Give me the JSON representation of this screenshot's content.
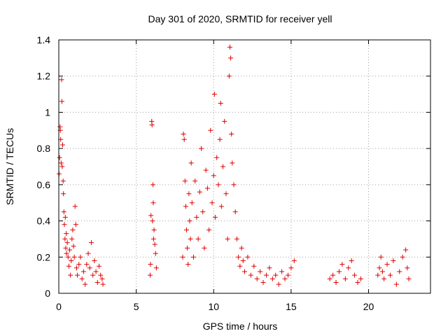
{
  "chart_data": {
    "type": "scatter",
    "title": "Day 301 of 2020, SRMTID for receiver yell",
    "xlabel": "GPS time / hours",
    "ylabel": "SRMTID / TECUs",
    "xlim": [
      0,
      24
    ],
    "ylim": [
      0,
      1.4
    ],
    "xticks": [
      0,
      5,
      10,
      15,
      20
    ],
    "xtick_labels": [
      "0",
      "5",
      "10",
      "15",
      "20"
    ],
    "yticks": [
      0,
      0.2,
      0.4,
      0.6,
      0.8,
      1.0,
      1.2,
      1.4
    ],
    "ytick_labels": [
      "0",
      "0.2",
      "0.4",
      "0.6",
      "0.8",
      "1",
      "1.2",
      "1.4"
    ],
    "grid": true,
    "marker": "plus",
    "color": "#e00000",
    "series": [
      {
        "name": "SRMTID",
        "points": [
          [
            0.02,
            0.66
          ],
          [
            0.05,
            0.75
          ],
          [
            0.08,
            0.92
          ],
          [
            0.1,
            0.9
          ],
          [
            0.12,
            0.85
          ],
          [
            0.15,
            0.72
          ],
          [
            0.18,
            1.18
          ],
          [
            0.2,
            1.06
          ],
          [
            0.22,
            0.7
          ],
          [
            0.25,
            0.82
          ],
          [
            0.28,
            0.62
          ],
          [
            0.3,
            0.55
          ],
          [
            0.33,
            0.45
          ],
          [
            0.36,
            0.38
          ],
          [
            0.4,
            0.3
          ],
          [
            0.42,
            0.42
          ],
          [
            0.45,
            0.25
          ],
          [
            0.48,
            0.33
          ],
          [
            0.5,
            0.22
          ],
          [
            0.55,
            0.28
          ],
          [
            0.6,
            0.2
          ],
          [
            0.65,
            0.15
          ],
          [
            0.7,
            0.24
          ],
          [
            0.75,
            0.1
          ],
          [
            0.8,
            0.18
          ],
          [
            0.85,
            0.3
          ],
          [
            0.9,
            0.35
          ],
          [
            0.95,
            0.26
          ],
          [
            1.0,
            0.2
          ],
          [
            1.05,
            0.48
          ],
          [
            1.1,
            0.38
          ],
          [
            1.15,
            0.14
          ],
          [
            1.2,
            0.1
          ],
          [
            1.3,
            0.16
          ],
          [
            1.4,
            0.2
          ],
          [
            1.5,
            0.08
          ],
          [
            1.6,
            0.12
          ],
          [
            1.7,
            0.05
          ],
          [
            1.8,
            0.16
          ],
          [
            1.9,
            0.22
          ],
          [
            2.0,
            0.14
          ],
          [
            2.1,
            0.28
          ],
          [
            2.2,
            0.1
          ],
          [
            2.3,
            0.18
          ],
          [
            2.4,
            0.12
          ],
          [
            2.5,
            0.06
          ],
          [
            2.6,
            0.15
          ],
          [
            2.7,
            0.1
          ],
          [
            2.8,
            0.08
          ],
          [
            2.85,
            0.05
          ],
          [
            6.0,
            0.95
          ],
          [
            6.02,
            0.93
          ],
          [
            5.95,
            0.43
          ],
          [
            6.05,
            0.4
          ],
          [
            6.1,
            0.5
          ],
          [
            6.15,
            0.35
          ],
          [
            5.9,
            0.1
          ],
          [
            5.92,
            0.16
          ],
          [
            6.2,
            0.27
          ],
          [
            6.25,
            0.22
          ],
          [
            6.3,
            0.14
          ],
          [
            6.08,
            0.6
          ],
          [
            6.12,
            0.3
          ],
          [
            8.0,
            0.2
          ],
          [
            8.05,
            0.88
          ],
          [
            8.1,
            0.85
          ],
          [
            8.15,
            0.62
          ],
          [
            8.2,
            0.48
          ],
          [
            8.25,
            0.35
          ],
          [
            8.3,
            0.25
          ],
          [
            8.35,
            0.16
          ],
          [
            8.4,
            0.55
          ],
          [
            8.45,
            0.4
          ],
          [
            8.5,
            0.3
          ],
          [
            8.55,
            0.72
          ],
          [
            8.6,
            0.5
          ],
          [
            8.7,
            0.2
          ],
          [
            8.8,
            0.62
          ],
          [
            8.9,
            0.42
          ],
          [
            9.0,
            0.3
          ],
          [
            9.1,
            0.56
          ],
          [
            9.2,
            0.8
          ],
          [
            9.3,
            0.45
          ],
          [
            9.4,
            0.25
          ],
          [
            9.5,
            0.68
          ],
          [
            9.6,
            0.58
          ],
          [
            9.7,
            0.35
          ],
          [
            9.8,
            0.9
          ],
          [
            9.9,
            0.5
          ],
          [
            10.0,
            0.65
          ],
          [
            10.05,
            1.1
          ],
          [
            10.1,
            0.42
          ],
          [
            10.2,
            0.75
          ],
          [
            10.3,
            0.6
          ],
          [
            10.4,
            0.85
          ],
          [
            10.45,
            1.05
          ],
          [
            10.5,
            0.48
          ],
          [
            10.6,
            0.7
          ],
          [
            10.7,
            0.95
          ],
          [
            10.8,
            0.55
          ],
          [
            10.9,
            0.3
          ],
          [
            11.0,
            1.2
          ],
          [
            11.05,
            1.36
          ],
          [
            11.1,
            1.3
          ],
          [
            11.15,
            0.88
          ],
          [
            11.2,
            0.72
          ],
          [
            11.3,
            0.6
          ],
          [
            11.4,
            0.45
          ],
          [
            11.5,
            0.3
          ],
          [
            11.6,
            0.2
          ],
          [
            11.7,
            0.15
          ],
          [
            11.8,
            0.25
          ],
          [
            11.9,
            0.18
          ],
          [
            12.0,
            0.12
          ],
          [
            12.2,
            0.2
          ],
          [
            12.4,
            0.1
          ],
          [
            12.6,
            0.15
          ],
          [
            12.8,
            0.08
          ],
          [
            13.0,
            0.12
          ],
          [
            13.2,
            0.06
          ],
          [
            13.4,
            0.1
          ],
          [
            13.6,
            0.14
          ],
          [
            13.8,
            0.08
          ],
          [
            14.0,
            0.1
          ],
          [
            14.2,
            0.05
          ],
          [
            14.4,
            0.12
          ],
          [
            14.6,
            0.08
          ],
          [
            14.8,
            0.1
          ],
          [
            15.0,
            0.14
          ],
          [
            15.2,
            0.18
          ],
          [
            17.5,
            0.08
          ],
          [
            17.7,
            0.1
          ],
          [
            17.9,
            0.06
          ],
          [
            18.1,
            0.12
          ],
          [
            18.3,
            0.16
          ],
          [
            18.5,
            0.08
          ],
          [
            18.7,
            0.14
          ],
          [
            18.9,
            0.18
          ],
          [
            19.1,
            0.1
          ],
          [
            19.3,
            0.06
          ],
          [
            19.5,
            0.08
          ],
          [
            20.6,
            0.1
          ],
          [
            20.7,
            0.14
          ],
          [
            20.8,
            0.2
          ],
          [
            20.9,
            0.12
          ],
          [
            21.0,
            0.08
          ],
          [
            21.2,
            0.16
          ],
          [
            21.4,
            0.1
          ],
          [
            21.6,
            0.18
          ],
          [
            21.8,
            0.05
          ],
          [
            22.0,
            0.12
          ],
          [
            22.2,
            0.2
          ],
          [
            22.4,
            0.24
          ],
          [
            22.5,
            0.14
          ],
          [
            22.6,
            0.08
          ]
        ]
      }
    ]
  }
}
